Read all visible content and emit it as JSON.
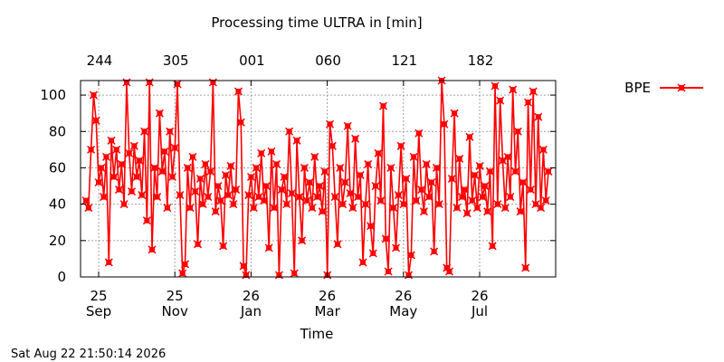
{
  "footer_timestamp": "Sat Aug 22 21:50:14 2026",
  "colors": {
    "series": "#ff0000",
    "grid": "#a0a0a0",
    "axis": "#000000",
    "background": "#ffffff"
  },
  "chart_data": {
    "type": "line",
    "title": "Processing time ULTRA in [min]",
    "xlabel": "Time",
    "ylabel": "",
    "ylim": [
      0,
      108
    ],
    "y_ticks": [
      0,
      20,
      40,
      60,
      80,
      100
    ],
    "x_ticks": [
      {
        "day": "25",
        "month": "Sep"
      },
      {
        "day": "25",
        "month": "Nov"
      },
      {
        "day": "26",
        "month": "Jan"
      },
      {
        "day": "26",
        "month": "Mar"
      },
      {
        "day": "26",
        "month": "May"
      },
      {
        "day": "26",
        "month": "Jul"
      }
    ],
    "x_top_ticks": [
      "244",
      "305",
      "001",
      "060",
      "121",
      "182"
    ],
    "grid": true,
    "legend_position": "outside-right",
    "series": [
      {
        "name": "BPE",
        "marker": "x-square",
        "values": [
          [
            0,
            42
          ],
          [
            1,
            38
          ],
          [
            2,
            70
          ],
          [
            3,
            100
          ],
          [
            4,
            86
          ],
          [
            5,
            52
          ],
          [
            6,
            60
          ],
          [
            7,
            44
          ],
          [
            8,
            66
          ],
          [
            9,
            8
          ],
          [
            10,
            75
          ],
          [
            11,
            55
          ],
          [
            12,
            70
          ],
          [
            13,
            48
          ],
          [
            14,
            62
          ],
          [
            15,
            40
          ],
          [
            16,
            107
          ],
          [
            17,
            68
          ],
          [
            18,
            47
          ],
          [
            19,
            72
          ],
          [
            20,
            55
          ],
          [
            21,
            64
          ],
          [
            22,
            45
          ],
          [
            23,
            80
          ],
          [
            24,
            31
          ],
          [
            25,
            107
          ],
          [
            26,
            15
          ],
          [
            27,
            60
          ],
          [
            28,
            44
          ],
          [
            29,
            90
          ],
          [
            30,
            58
          ],
          [
            31,
            69
          ],
          [
            32,
            38
          ],
          [
            33,
            80
          ],
          [
            34,
            55
          ],
          [
            35,
            71
          ],
          [
            36,
            106
          ],
          [
            37,
            45
          ],
          [
            38,
            2
          ],
          [
            39,
            7
          ],
          [
            40,
            60
          ],
          [
            41,
            38
          ],
          [
            42,
            66
          ],
          [
            43,
            47
          ],
          [
            44,
            18
          ],
          [
            45,
            54
          ],
          [
            46,
            40
          ],
          [
            47,
            62
          ],
          [
            48,
            44
          ],
          [
            49,
            58
          ],
          [
            50,
            107
          ],
          [
            51,
            36
          ],
          [
            52,
            50
          ],
          [
            53,
            42
          ],
          [
            54,
            17
          ],
          [
            55,
            56
          ],
          [
            56,
            45
          ],
          [
            57,
            61
          ],
          [
            58,
            40
          ],
          [
            59,
            48
          ],
          [
            60,
            102
          ],
          [
            61,
            85
          ],
          [
            62,
            6
          ],
          [
            63,
            1
          ],
          [
            64,
            45
          ],
          [
            65,
            55
          ],
          [
            66,
            38
          ],
          [
            67,
            60
          ],
          [
            68,
            44
          ],
          [
            69,
            68
          ],
          [
            70,
            42
          ],
          [
            71,
            50
          ],
          [
            72,
            16
          ],
          [
            73,
            69
          ],
          [
            74,
            38
          ],
          [
            75,
            62
          ],
          [
            76,
            1
          ],
          [
            77,
            48
          ],
          [
            78,
            55
          ],
          [
            79,
            40
          ],
          [
            80,
            80
          ],
          [
            81,
            46
          ],
          [
            82,
            2
          ],
          [
            83,
            75
          ],
          [
            84,
            44
          ],
          [
            85,
            20
          ],
          [
            86,
            60
          ],
          [
            87,
            42
          ],
          [
            88,
            52
          ],
          [
            89,
            38
          ],
          [
            90,
            66
          ],
          [
            91,
            44
          ],
          [
            92,
            50
          ],
          [
            93,
            36
          ],
          [
            94,
            58
          ],
          [
            95,
            1
          ],
          [
            96,
            84
          ],
          [
            97,
            72
          ],
          [
            98,
            44
          ],
          [
            99,
            18
          ],
          [
            100,
            60
          ],
          [
            101,
            40
          ],
          [
            102,
            52
          ],
          [
            103,
            83
          ],
          [
            104,
            46
          ],
          [
            105,
            38
          ],
          [
            106,
            76
          ],
          [
            107,
            44
          ],
          [
            108,
            56
          ],
          [
            109,
            8
          ],
          [
            110,
            40
          ],
          [
            111,
            62
          ],
          [
            112,
            28
          ],
          [
            113,
            13
          ],
          [
            114,
            50
          ],
          [
            115,
            68
          ],
          [
            116,
            42
          ],
          [
            117,
            94
          ],
          [
            118,
            21
          ],
          [
            119,
            3
          ],
          [
            120,
            60
          ],
          [
            121,
            38
          ],
          [
            122,
            16
          ],
          [
            123,
            45
          ],
          [
            124,
            72
          ],
          [
            125,
            40
          ],
          [
            126,
            54
          ],
          [
            127,
            1
          ],
          [
            128,
            12
          ],
          [
            129,
            66
          ],
          [
            130,
            42
          ],
          [
            131,
            79
          ],
          [
            132,
            48
          ],
          [
            133,
            36
          ],
          [
            134,
            62
          ],
          [
            135,
            44
          ],
          [
            136,
            52
          ],
          [
            137,
            14
          ],
          [
            138,
            60
          ],
          [
            139,
            40
          ],
          [
            140,
            108
          ],
          [
            141,
            84
          ],
          [
            142,
            5
          ],
          [
            143,
            3
          ],
          [
            144,
            54
          ],
          [
            145,
            90
          ],
          [
            146,
            38
          ],
          [
            147,
            65
          ],
          [
            148,
            44
          ],
          [
            149,
            48
          ],
          [
            150,
            35
          ],
          [
            151,
            77
          ],
          [
            152,
            42
          ],
          [
            153,
            56
          ],
          [
            154,
            38
          ],
          [
            155,
            61
          ],
          [
            156,
            44
          ],
          [
            157,
            50
          ],
          [
            158,
            36
          ],
          [
            159,
            58
          ],
          [
            160,
            17
          ],
          [
            161,
            105
          ],
          [
            162,
            40
          ],
          [
            163,
            97
          ],
          [
            164,
            64
          ],
          [
            165,
            38
          ],
          [
            166,
            66
          ],
          [
            167,
            44
          ],
          [
            168,
            103
          ],
          [
            169,
            58
          ],
          [
            170,
            80
          ],
          [
            171,
            36
          ],
          [
            172,
            52
          ],
          [
            173,
            5
          ],
          [
            174,
            96
          ],
          [
            175,
            48
          ],
          [
            176,
            102
          ],
          [
            177,
            40
          ],
          [
            178,
            88
          ],
          [
            179,
            38
          ],
          [
            180,
            70
          ],
          [
            181,
            42
          ],
          [
            182,
            58
          ]
        ]
      }
    ]
  }
}
